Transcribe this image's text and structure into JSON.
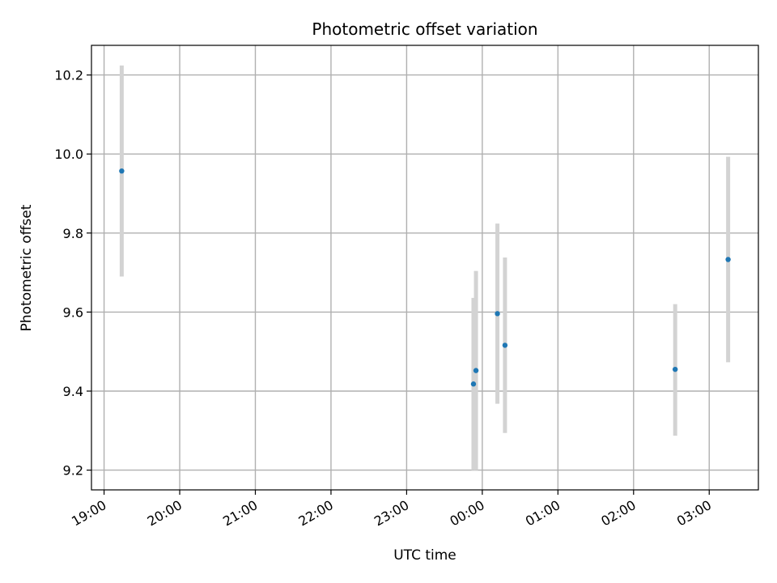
{
  "chart_data": {
    "type": "scatter",
    "title": "Photometric offset variation",
    "xlabel": "UTC time",
    "ylabel": "Photometric offset",
    "x_ticks": [
      "19:00",
      "20:00",
      "21:00",
      "22:00",
      "23:00",
      "00:00",
      "01:00",
      "02:00",
      "03:00"
    ],
    "y_ticks": [
      "9.2",
      "9.4",
      "9.6",
      "9.8",
      "10.0",
      "10.2"
    ],
    "xlim": [
      "18:50",
      "03:39"
    ],
    "ylim": [
      9.15,
      10.275
    ],
    "grid": true,
    "marker_color": "#1f77b4",
    "errorbar_color": "#d3d3d3",
    "points": [
      {
        "time": "19:14",
        "value": 9.957,
        "low": 9.69,
        "high": 10.224
      },
      {
        "time": "23:53",
        "value": 9.418,
        "low": 9.2,
        "high": 9.636
      },
      {
        "time": "23:55",
        "value": 9.452,
        "low": 9.2,
        "high": 9.704
      },
      {
        "time": "00:12",
        "value": 9.596,
        "low": 9.368,
        "high": 9.824
      },
      {
        "time": "00:18",
        "value": 9.516,
        "low": 9.294,
        "high": 9.738
      },
      {
        "time": "02:33",
        "value": 9.455,
        "low": 9.287,
        "high": 9.62
      },
      {
        "time": "03:15",
        "value": 9.733,
        "low": 9.473,
        "high": 9.993
      }
    ]
  }
}
